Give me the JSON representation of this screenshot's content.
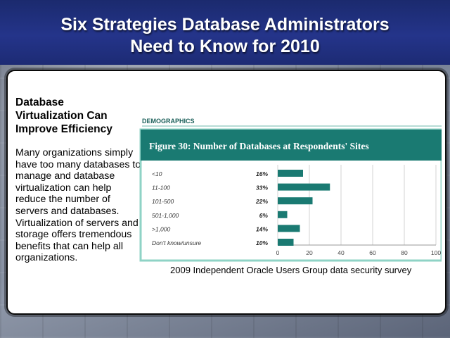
{
  "slide": {
    "title": "Six Strategies Database Administrators\nNeed to Know for 2010"
  },
  "left": {
    "heading": "Database\nVirtualization Can\nImprove Efficiency",
    "body": "Many organizations simply have too many databases to manage and database virtualization can help reduce the number of servers and databases. Virtualization of servers and storage offers tremendous benefits that can help all organizations."
  },
  "figure": {
    "section_label": "DEMOGRAPHICS",
    "caption": "2009 Independent Oracle Users Group data security survey"
  },
  "chart_data": {
    "type": "bar",
    "orientation": "horizontal",
    "title": "Figure 30:  Number of Databases at Respondents' Sites",
    "categories": [
      "<10",
      "11-100",
      "101-500",
      "501-1,000",
      ">1,000",
      "Don't know/unsure"
    ],
    "values": [
      16,
      33,
      22,
      6,
      14,
      10
    ],
    "value_labels": [
      "16%",
      "33%",
      "22%",
      "6%",
      "14%",
      "10%"
    ],
    "xlim": [
      0,
      100
    ],
    "xticks": [
      0,
      20,
      40,
      60,
      80,
      100
    ],
    "xtick_labels": [
      "0",
      "20",
      "40",
      "60",
      "80",
      "100"
    ],
    "grid": true,
    "bar_color": "#1a7a72",
    "header_color": "#1a7a72",
    "border_color": "#8fd3c6"
  }
}
